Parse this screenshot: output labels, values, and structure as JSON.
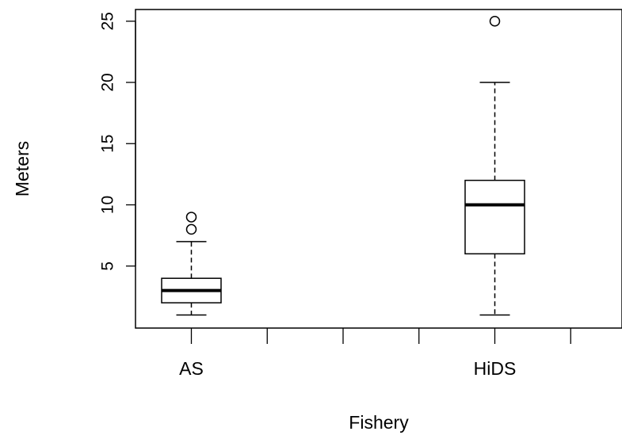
{
  "chart_data": {
    "type": "boxplot",
    "xlabel": "Fishery",
    "ylabel": "Meters",
    "ylim": [
      0,
      25
    ],
    "yticks": [
      "5",
      "10",
      "15",
      "20",
      "25"
    ],
    "categories": [
      "AS",
      "HiDS"
    ],
    "x_positions": [
      1,
      5
    ],
    "x_tick_positions": [
      1,
      2,
      3,
      4,
      5,
      6
    ],
    "xlim": [
      0.2,
      6.7
    ],
    "boxes": [
      {
        "category": "AS",
        "min": 1,
        "q1": 2,
        "median": 3,
        "q3": 4,
        "max": 7,
        "outliers": [
          8,
          9
        ]
      },
      {
        "category": "HiDS",
        "min": 1,
        "q1": 6,
        "median": 10,
        "q3": 12,
        "max": 20,
        "outliers": [
          25
        ]
      }
    ],
    "grid": false
  }
}
